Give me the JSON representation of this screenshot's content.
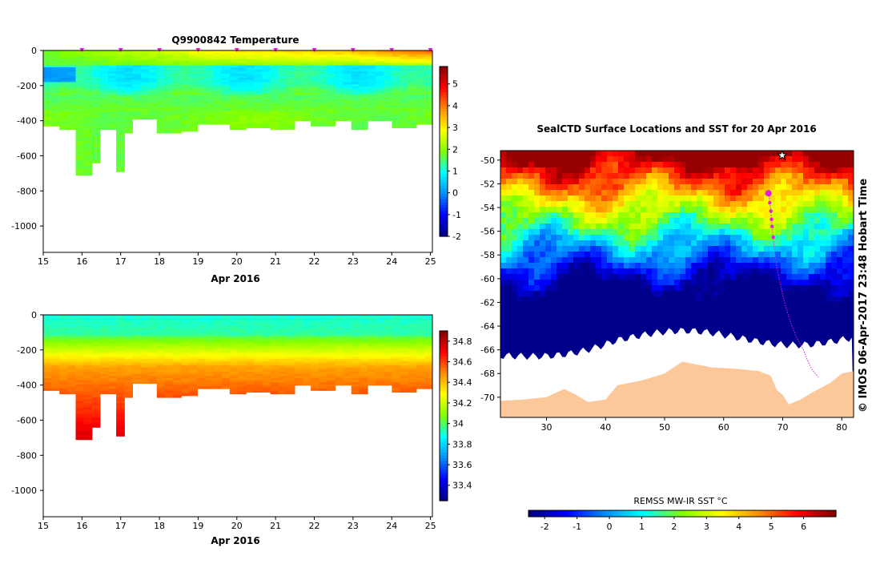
{
  "chart_data": [
    {
      "type": "heatmap",
      "name": "temperature-section",
      "title": "Q9900842  Temperature",
      "xlabel": "Apr 2016",
      "ylabel": "",
      "x_ticks": [
        15,
        16,
        17,
        18,
        19,
        20,
        21,
        22,
        23,
        24,
        25
      ],
      "y_ticks": [
        0,
        -200,
        -400,
        -600,
        -800,
        -1000
      ],
      "xlim": [
        15,
        25.05
      ],
      "ylim": [
        -1150,
        0
      ],
      "profile_markers_x": [
        16,
        17,
        18,
        19,
        20,
        21,
        22,
        23,
        24,
        25
      ],
      "colorbar": {
        "ticks": [
          5,
          4,
          3,
          2,
          1,
          0,
          -1,
          -2
        ],
        "range": [
          -2,
          5.8
        ]
      },
      "profile_max_depth": [
        [
          15.0,
          430
        ],
        [
          15.4,
          450
        ],
        [
          15.9,
          710
        ],
        [
          16.3,
          640
        ],
        [
          16.5,
          450
        ],
        [
          16.8,
          690
        ],
        [
          17.0,
          470
        ],
        [
          17.4,
          390
        ],
        [
          17.9,
          470
        ],
        [
          18.5,
          460
        ],
        [
          19.0,
          420
        ],
        [
          19.5,
          420
        ],
        [
          19.9,
          450
        ],
        [
          20.3,
          440
        ],
        [
          20.9,
          450
        ],
        [
          21.4,
          400
        ],
        [
          21.9,
          430
        ],
        [
          22.5,
          400
        ],
        [
          22.9,
          450
        ],
        [
          23.4,
          400
        ],
        [
          23.9,
          440
        ],
        [
          24.3,
          440
        ],
        [
          24.6,
          420
        ]
      ],
      "surface_temperature": [
        [
          15.0,
          1.8
        ],
        [
          16.0,
          2.0
        ],
        [
          17.0,
          2.3
        ],
        [
          18.0,
          2.5
        ],
        [
          19.0,
          2.9
        ],
        [
          20.0,
          3.1
        ],
        [
          21.0,
          3.2
        ],
        [
          22.0,
          3.3
        ],
        [
          23.0,
          3.5
        ],
        [
          24.0,
          3.9
        ],
        [
          25.0,
          4.2
        ]
      ],
      "min_temperature_layer": {
        "depth": [
          100,
          250
        ],
        "value": 1.0
      },
      "deep_temperature": 1.8
    },
    {
      "type": "heatmap",
      "name": "salinity-section",
      "title": "",
      "xlabel": "Apr 2016",
      "ylabel": "",
      "x_ticks": [
        15,
        16,
        17,
        18,
        19,
        20,
        21,
        22,
        23,
        24,
        25
      ],
      "y_ticks": [
        0,
        -200,
        -400,
        -600,
        -800,
        -1000
      ],
      "xlim": [
        15,
        25.05
      ],
      "ylim": [
        -1150,
        0
      ],
      "colorbar": {
        "ticks": [
          34.8,
          34.6,
          34.4,
          34.2,
          34,
          33.8,
          33.6,
          33.4
        ],
        "range": [
          33.25,
          34.9
        ]
      },
      "surface_salinity": 33.9,
      "deep_salinity": 34.7
    },
    {
      "type": "heatmap",
      "name": "sst-map",
      "title": "SealCTD Surface Locations and SST for 20 Apr 2016",
      "xlabel": "",
      "ylabel": "",
      "x_ticks": [
        30,
        40,
        50,
        60,
        70,
        80
      ],
      "y_ticks": [
        -50,
        -52,
        -54,
        -56,
        -58,
        -60,
        -62,
        -64,
        -66,
        -68,
        -70
      ],
      "xlim": [
        22.2,
        82
      ],
      "ylim": [
        -71.7,
        -49.2
      ],
      "track": {
        "lon": [
          67.6,
          67.8,
          68.0,
          68.1,
          68.2,
          68.4,
          68.6,
          69.0,
          69.6,
          70.3,
          71.2,
          72.2,
          73.5,
          74.3,
          75.0,
          75.5,
          76.0
        ],
        "lat": [
          -52.8,
          -53.6,
          -54.3,
          -55.0,
          -55.6,
          -56.5,
          -57.5,
          -59.0,
          -60.5,
          -62.0,
          -63.5,
          -64.8,
          -66.0,
          -67.0,
          -67.7,
          -68.0,
          -68.3
        ]
      },
      "track_points": {
        "lon": [
          67.6,
          67.8,
          68.0,
          68.1,
          68.2,
          68.4
        ],
        "lat": [
          -52.8,
          -53.6,
          -54.3,
          -55.0,
          -55.6,
          -56.5
        ]
      },
      "current_position": [
        67.6,
        -52.8
      ],
      "star_position": [
        69.9,
        -49.6
      ],
      "colorbar_label": "REMSS MW-IR SST °C",
      "colorbar_ticks": [
        -2,
        -1,
        0,
        1,
        2,
        3,
        4,
        5,
        6
      ],
      "colorbar_range": [
        -2.5,
        7
      ]
    }
  ],
  "copyright": "© IMOS 06-Apr-2017 23:48 Hobart Time"
}
